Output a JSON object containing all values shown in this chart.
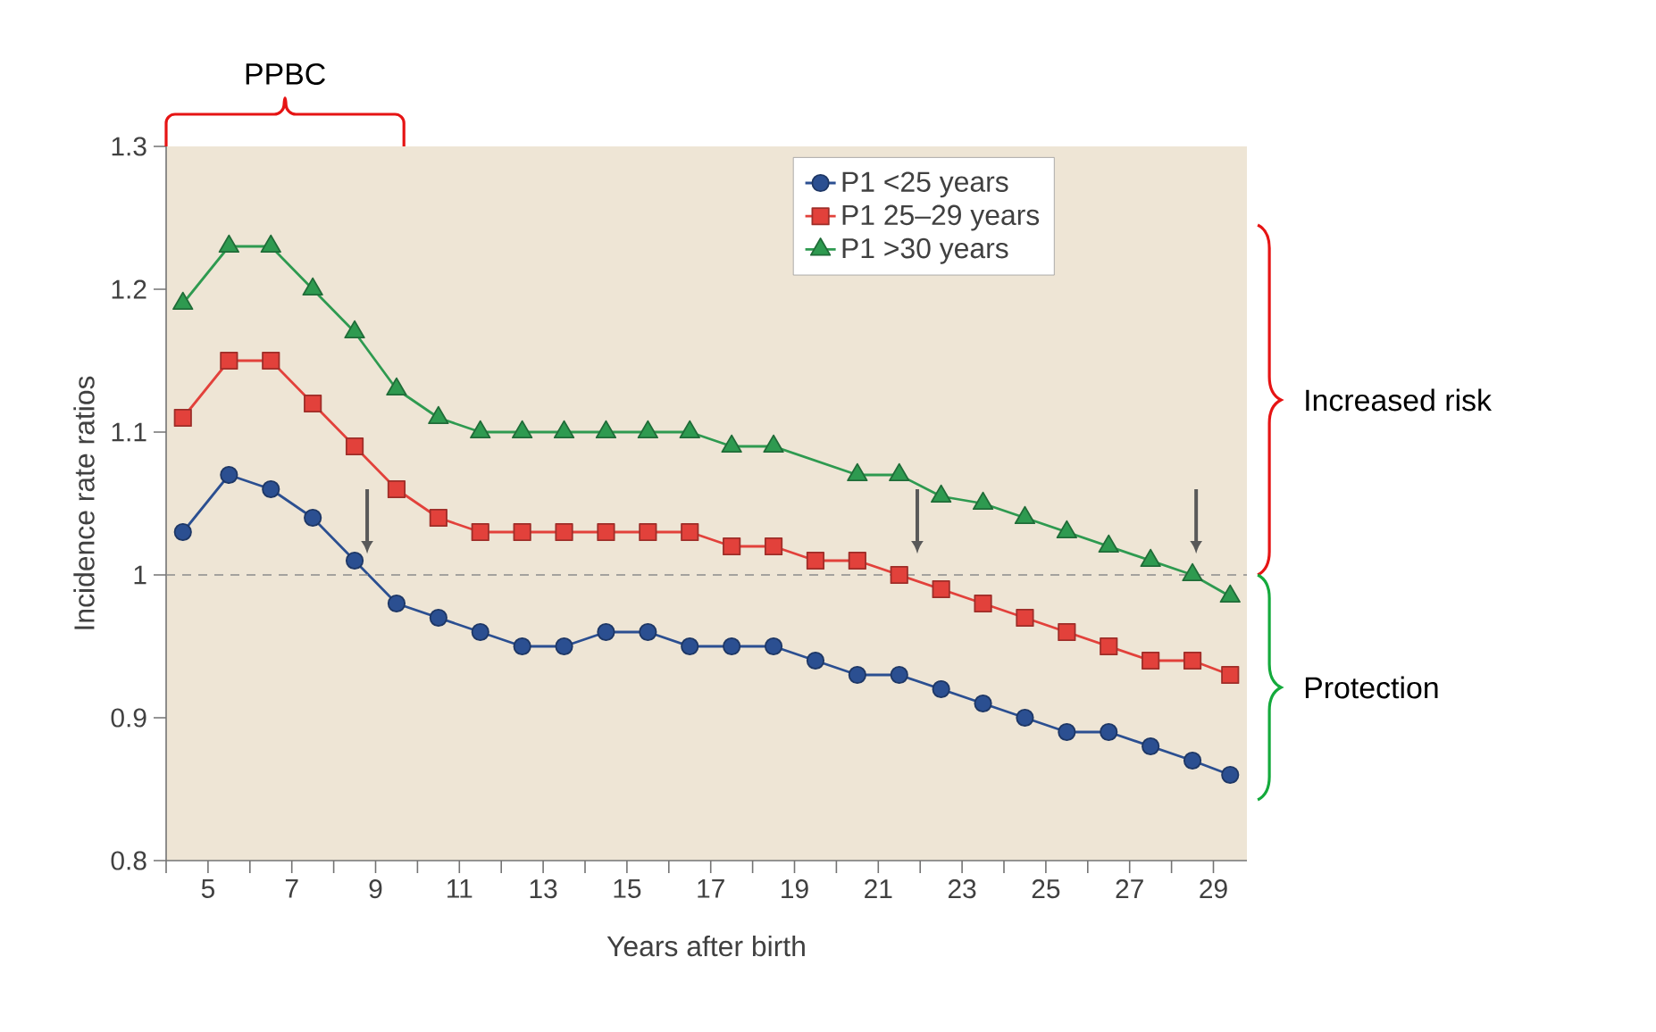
{
  "chart_data": {
    "type": "line",
    "xlabel": "Years after birth",
    "ylabel": "Incidence rate ratios",
    "x": [
      4.4,
      5.5,
      6.5,
      7.5,
      8.5,
      9.5,
      10.5,
      11.5,
      12.5,
      13.5,
      14.5,
      15.5,
      16.5,
      17.5,
      18.5,
      19.5,
      20.5,
      21.5,
      22.5,
      23.5,
      24.5,
      25.5,
      26.5,
      27.5,
      28.5,
      29.4
    ],
    "series": [
      {
        "name": "P1 <25 years",
        "color": "#2b4f91",
        "marker": "circle",
        "values": [
          1.03,
          1.07,
          1.06,
          1.04,
          1.01,
          0.98,
          0.97,
          0.96,
          0.95,
          0.95,
          0.96,
          0.96,
          0.95,
          0.95,
          0.95,
          0.94,
          0.93,
          0.93,
          0.92,
          0.91,
          0.9,
          0.89,
          0.89,
          0.88,
          0.87,
          0.86
        ]
      },
      {
        "name": "P1 25–29 years",
        "color": "#e2413b",
        "marker": "square",
        "values": [
          1.11,
          1.15,
          1.15,
          1.12,
          1.09,
          1.06,
          1.04,
          1.03,
          1.03,
          1.03,
          1.03,
          1.03,
          1.03,
          1.02,
          1.02,
          1.01,
          1.01,
          1.0,
          0.99,
          0.98,
          0.97,
          0.96,
          0.95,
          0.94,
          0.94,
          0.93
        ]
      },
      {
        "name": "P1 >30 years",
        "color": "#2e9a50",
        "marker": "triangle",
        "x": [
          4.4,
          5.5,
          6.5,
          7.5,
          8.5,
          9.5,
          10.5,
          11.5,
          12.5,
          13.5,
          14.5,
          15.5,
          16.5,
          17.5,
          18.5,
          20.5,
          21.5,
          22.5,
          23.5,
          24.5,
          25.5,
          26.5,
          27.5,
          28.5,
          29.4
        ],
        "values": [
          1.19,
          1.23,
          1.23,
          1.2,
          1.17,
          1.13,
          1.11,
          1.1,
          1.1,
          1.1,
          1.1,
          1.1,
          1.1,
          1.09,
          1.09,
          1.07,
          1.07,
          1.055,
          1.05,
          1.04,
          1.03,
          1.02,
          1.01,
          1.0,
          0.985
        ]
      }
    ],
    "xlim": [
      4,
      29.8
    ],
    "xticks": [
      {
        "value": 4,
        "label": null
      },
      5,
      {
        "value": 6,
        "label": null
      },
      7,
      {
        "value": 8,
        "label": null
      },
      9,
      {
        "value": 10,
        "label": null
      },
      11,
      {
        "value": 12,
        "label": null
      },
      13,
      {
        "value": 14,
        "label": null
      },
      15,
      {
        "value": 16,
        "label": null
      },
      17,
      {
        "value": 18,
        "label": null
      },
      19,
      {
        "value": 20,
        "label": null
      },
      21,
      {
        "value": 22,
        "label": null
      },
      23,
      {
        "value": 24,
        "label": null
      },
      25,
      {
        "value": 26,
        "label": null
      },
      27,
      {
        "value": 28,
        "label": null
      },
      29
    ],
    "ylim": [
      0.8,
      1.3
    ],
    "yticks": [
      0.8,
      0.9,
      1,
      1.1,
      1.2,
      1.3
    ],
    "ref_lines": [
      {
        "axis": "y",
        "value": 1,
        "color": "#8c8c8c",
        "line_style": "dashed"
      }
    ],
    "legend": "top right",
    "annotations": [
      "PPBC",
      "Increased risk",
      "Protection"
    ]
  }
}
